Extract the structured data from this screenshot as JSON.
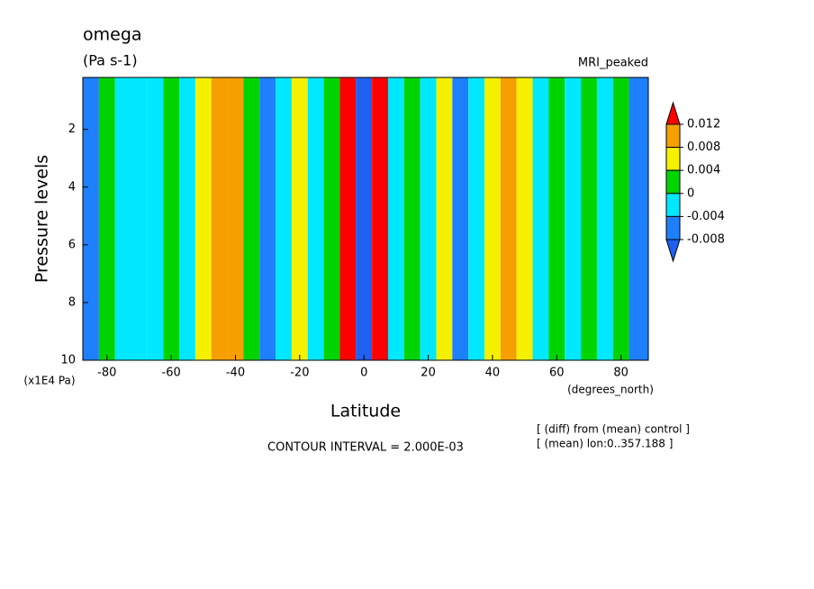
{
  "chart_data": {
    "type": "contour",
    "title": "omega",
    "subtitle": "(Pa s-1)",
    "dataset": "MRI_peaked",
    "xlabel": "Latitude",
    "xunits": "(degrees_north)",
    "ylabel": "Pressure levels",
    "yunits": "(x1E4 Pa)",
    "annotations": [
      "CONTOUR INTERVAL = 2.000E-03",
      "[ (diff) from (mean) control ]",
      "[ (mean) lon:0..357.188 ]"
    ],
    "x": [
      -85,
      -80,
      -75,
      -70,
      -65,
      -60,
      -55,
      -50,
      -45,
      -40,
      -35,
      -30,
      -25,
      -20,
      -15,
      -10,
      -5,
      0,
      5,
      10,
      15,
      20,
      25,
      30,
      35,
      40,
      45,
      50,
      55,
      60,
      65,
      70,
      75,
      80,
      85
    ],
    "values": [
      -0.005,
      0.002,
      -0.003,
      -0.002,
      -0.003,
      0.001,
      -0.002,
      0.005,
      0.009,
      0.009,
      0.002,
      -0.005,
      -0.003,
      0.005,
      -0.003,
      0.001,
      0.014,
      -0.01,
      0.014,
      -0.002,
      0.001,
      -0.002,
      0.006,
      -0.005,
      -0.003,
      0.006,
      0.009,
      0.005,
      -0.002,
      0.002,
      -0.003,
      0.002,
      -0.003,
      0.002,
      -0.005
    ],
    "xlim": [
      -87.5,
      88.5
    ],
    "xticks": [
      -80,
      -60,
      -40,
      -20,
      0,
      20,
      40,
      60,
      80
    ],
    "ylim": [
      10,
      0.2
    ],
    "yticks": [
      2,
      4,
      6,
      8,
      10
    ],
    "levels": [
      0.012,
      0.008,
      0.004,
      0,
      -0.004,
      -0.008
    ],
    "level_colors": [
      "#ff0000",
      "#f5a000",
      "#f5f000",
      "#00d400",
      "#00e8ff",
      "#1e80ff",
      "#1e60f0"
    ]
  }
}
